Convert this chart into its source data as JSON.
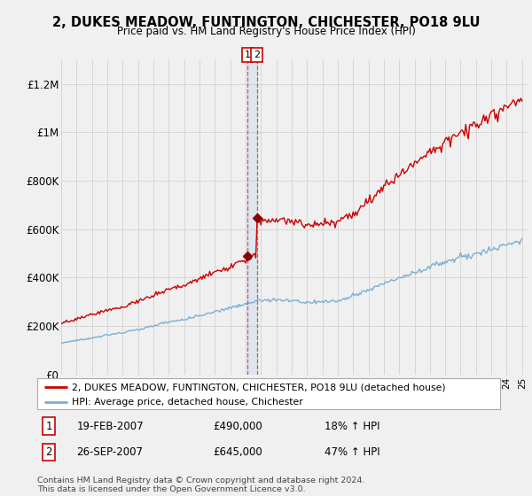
{
  "title": "2, DUKES MEADOW, FUNTINGTON, CHICHESTER, PO18 9LU",
  "subtitle": "Price paid vs. HM Land Registry's House Price Index (HPI)",
  "legend_line1": "2, DUKES MEADOW, FUNTINGTON, CHICHESTER, PO18 9LU (detached house)",
  "legend_line2": "HPI: Average price, detached house, Chichester",
  "transaction1_date": "19-FEB-2007",
  "transaction1_price": "£490,000",
  "transaction1_hpi": "18% ↑ HPI",
  "transaction2_date": "26-SEP-2007",
  "transaction2_price": "£645,000",
  "transaction2_hpi": "47% ↑ HPI",
  "footnote": "Contains HM Land Registry data © Crown copyright and database right 2024.\nThis data is licensed under the Open Government Licence v3.0.",
  "hpi_color": "#7bafd4",
  "property_color": "#cc0000",
  "marker_color": "#8b0000",
  "vline_color": "#cc3333",
  "shade_color": "#ddeeff",
  "background_color": "#f0f0f0",
  "plot_bg_color": "#f0f0f0",
  "grid_color": "#cccccc",
  "ylim": [
    0,
    1300000
  ],
  "yticks": [
    0,
    200000,
    400000,
    600000,
    800000,
    1000000,
    1200000
  ],
  "ytick_labels": [
    "£0",
    "£200K",
    "£400K",
    "£600K",
    "£800K",
    "£1M",
    "£1.2M"
  ],
  "price1": 490000,
  "price2": 645000,
  "t1_year": 2007.12,
  "t2_year": 2007.73
}
